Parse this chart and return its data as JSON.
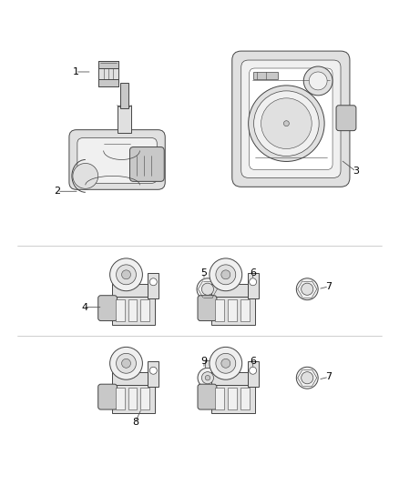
{
  "background_color": "#ffffff",
  "line_color": "#444444",
  "lw": 0.7,
  "fig_width": 4.38,
  "fig_height": 5.33,
  "face_light": "#f0f0f0",
  "face_mid": "#e0e0e0",
  "face_dark": "#c8c8c8"
}
